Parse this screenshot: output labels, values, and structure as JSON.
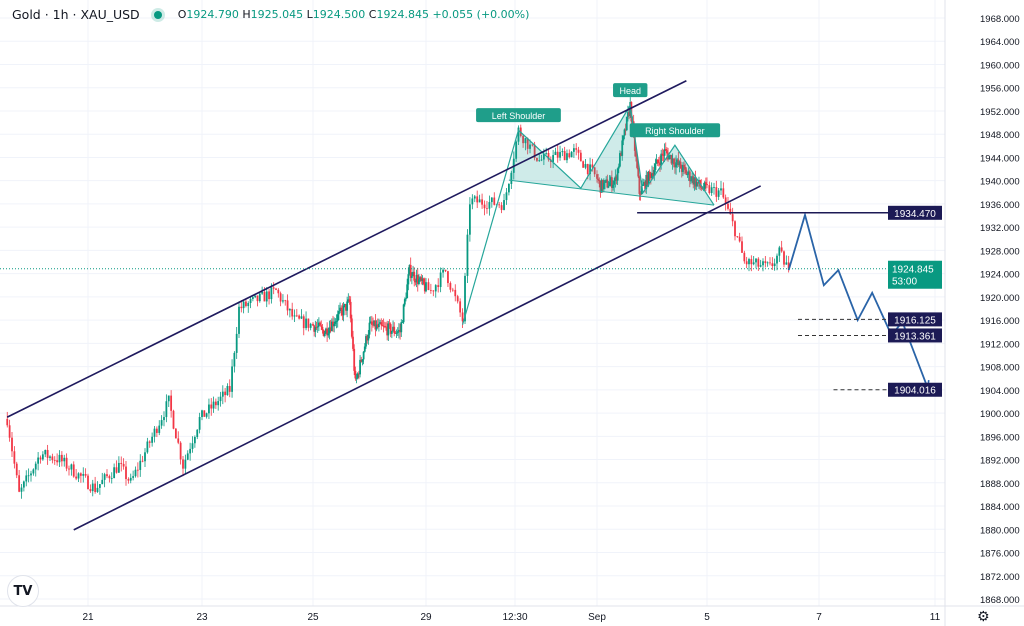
{
  "header": {
    "title": "Gold · 1h · XAU_USD",
    "status_dot_color": "#089981",
    "open_label": "O",
    "open": "1924.790",
    "high_label": "H",
    "high": "1925.045",
    "low_label": "L",
    "low": "1924.500",
    "close_label": "C",
    "close": "1924.845",
    "change": "+0.055 (+0.00%)"
  },
  "logo_text": "TV",
  "settings_icon": "gear-icon",
  "chart_data": {
    "type": "candlestick",
    "symbol": "XAU_USD",
    "interval": "1h",
    "ylim": [
      1866,
      1970
    ],
    "y_ticks": [
      1868,
      1872,
      1876,
      1880,
      1884,
      1888,
      1892,
      1896,
      1900,
      1904,
      1908,
      1912,
      1916,
      1920,
      1924,
      1928,
      1932,
      1936,
      1940,
      1944,
      1948,
      1952,
      1956,
      1960,
      1964,
      1968
    ],
    "y_tick_format": "3 decimals",
    "x_ticks": [
      {
        "label": "21",
        "t": "2023-08-21T00:00"
      },
      {
        "label": "23",
        "t": "2023-08-23T00:00"
      },
      {
        "label": "25",
        "t": "2023-08-25T00:00"
      },
      {
        "label": "29",
        "t": "2023-08-29T00:00"
      },
      {
        "label": "12:30",
        "t": "2023-08-30T12:30"
      },
      {
        "label": "Sep",
        "t": "2023-09-01T00:00"
      },
      {
        "label": "5",
        "t": "2023-09-05T00:00"
      },
      {
        "label": "7",
        "t": "2023-09-07T00:00"
      },
      {
        "label": "11",
        "t": "2023-09-11T00:00"
      }
    ],
    "grid": true,
    "colors": {
      "up": "#089981",
      "down": "#f23645",
      "channel": "#1f1a5e",
      "forecast": "#2a64a8",
      "pattern": "#26a69a",
      "label_navy": "#1c1a55"
    },
    "price_path_approx": [
      [
        "2023-08-19T14:00",
        1899
      ],
      [
        "2023-08-19T19:00",
        1886
      ],
      [
        "2023-08-20T04:00",
        1893
      ],
      [
        "2023-08-20T12:00",
        1892
      ],
      [
        "2023-08-21T03:00",
        1887
      ],
      [
        "2023-08-21T13:00",
        1891
      ],
      [
        "2023-08-21T18:00",
        1888
      ],
      [
        "2023-08-22T10:00",
        1902
      ],
      [
        "2023-08-22T16:00",
        1891
      ],
      [
        "2023-08-22T23:00",
        1899
      ],
      [
        "2023-08-23T12:00",
        1904
      ],
      [
        "2023-08-23T16:00",
        1918
      ],
      [
        "2023-08-24T08:00",
        1921
      ],
      [
        "2023-08-24T16:00",
        1916
      ],
      [
        "2023-08-25T10:00",
        1914
      ],
      [
        "2023-08-26T07:00",
        1919
      ],
      [
        "2023-08-26T12:00",
        1905
      ],
      [
        "2023-08-27T00:00",
        1915
      ],
      [
        "2023-08-28T02:00",
        1914
      ],
      [
        "2023-08-28T10:00",
        1924.5
      ],
      [
        "2023-08-29T02:00",
        1921
      ],
      [
        "2023-08-29T08:00",
        1924.5
      ],
      [
        "2023-08-29T15:00",
        1916
      ],
      [
        "2023-08-29T18:00",
        1936.5
      ],
      [
        "2023-08-30T08:00",
        1936
      ],
      [
        "2023-08-30T14:00",
        1948.7
      ],
      [
        "2023-08-30T23:00",
        1943.5
      ],
      [
        "2023-08-31T14:00",
        1945
      ],
      [
        "2023-09-01T03:00",
        1939
      ],
      [
        "2023-09-01T16:00",
        1940
      ],
      [
        "2023-09-02T05:00",
        1953
      ],
      [
        "2023-09-02T13:00",
        1938
      ],
      [
        "2023-09-03T11:00",
        1945
      ],
      [
        "2023-09-04T18:00",
        1939
      ],
      [
        "2023-09-05T06:00",
        1938
      ],
      [
        "2023-09-05T12:00",
        1931.5
      ],
      [
        "2023-09-05T16:00",
        1926
      ],
      [
        "2023-09-06T03:00",
        1925
      ],
      [
        "2023-09-06T07:00",
        1927.5
      ],
      [
        "2023-09-06T11:00",
        1924.845
      ]
    ],
    "current_price": {
      "value": "1924.845",
      "countdown": "53:00"
    },
    "annotations": {
      "channel_upper": [
        [
          "2023-08-19T14:00",
          1899.3
        ],
        [
          "2023-09-04T06:00",
          1957.2
        ]
      ],
      "channel_lower": [
        [
          "2023-08-20T18:00",
          1879.9
        ],
        [
          "2023-09-05T23:00",
          1939.1
        ]
      ],
      "pattern_lines": [
        [
          "2023-08-29T15:00",
          1915.2
        ],
        [
          "2023-08-30T14:00",
          1948.7
        ],
        [
          "2023-08-31T17:00",
          1938.7
        ],
        [
          "2023-09-02T05:00",
          1953
        ],
        [
          "2023-09-02T16:00",
          1937.9
        ],
        [
          "2023-09-03T20:00",
          1946.1
        ],
        [
          "2023-09-05T03:00",
          1935.8
        ]
      ],
      "neckline": [
        [
          "2023-08-30T10:00",
          1940.1
        ],
        [
          "2023-09-05T03:00",
          1935.8
        ]
      ],
      "pattern_labels": [
        {
          "text": "Left Shoulder",
          "t": "2023-08-30T14:00",
          "price": 1948.7
        },
        {
          "text": "Head",
          "t": "2023-09-02T05:00",
          "price": 1953
        },
        {
          "text": "Right Shoulder",
          "t": "2023-09-03T20:00",
          "price": 1946.1
        }
      ],
      "forecast_path": [
        [
          "2023-09-06T11:00",
          1924.6
        ],
        [
          "2023-09-06T18:00",
          1934.1
        ],
        [
          "2023-09-07T04:00",
          1922
        ],
        [
          "2023-09-07T16:00",
          1924.6
        ],
        [
          "2023-09-08T08:00",
          1916
        ],
        [
          "2023-09-08T20:00",
          1920.7
        ],
        [
          "2023-09-09T12:00",
          1913.4
        ],
        [
          "2023-09-09T21:00",
          1915.7
        ],
        [
          "2023-09-10T18:00",
          1904.3
        ]
      ],
      "levels": [
        {
          "price": 1934.47,
          "label": "1934.470",
          "style": "solid",
          "from": "2023-09-02T11:00"
        },
        {
          "price": 1916.125,
          "label": "1916.125",
          "style": "dashed",
          "from": "2023-09-06T15:00"
        },
        {
          "price": 1913.361,
          "label": "1913.361",
          "style": "dashed",
          "from": "2023-09-06T15:00"
        },
        {
          "price": 1904.016,
          "label": "1904.016",
          "style": "dashed",
          "from": "2023-09-07T12:00"
        }
      ]
    }
  }
}
